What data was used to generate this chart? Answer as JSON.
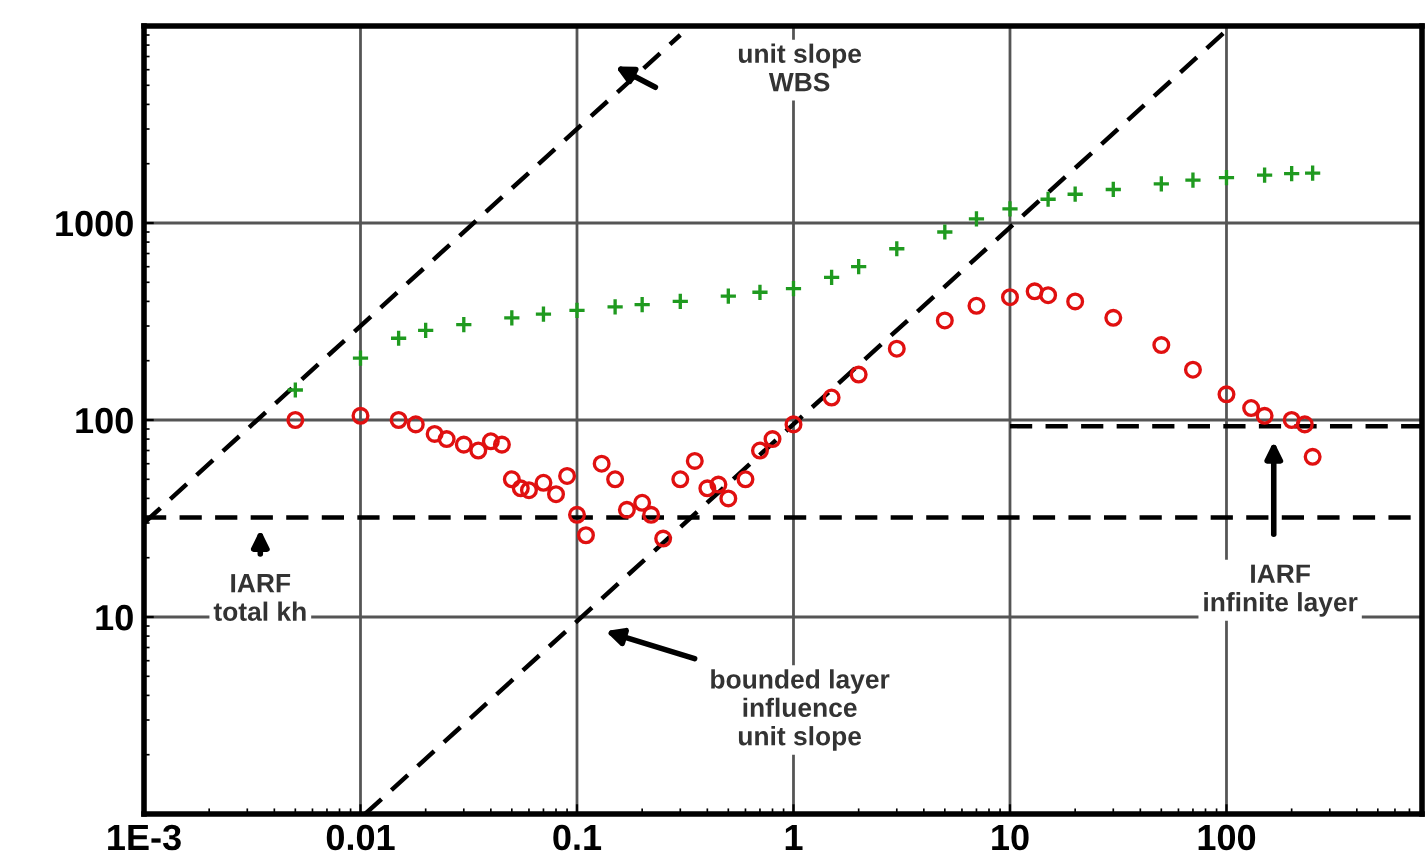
{
  "chart_data": {
    "type": "scatter",
    "log": "xy",
    "grid": true,
    "xlim": [
      0.001,
      800
    ],
    "ylim": [
      1,
      10000
    ],
    "xticks": [
      {
        "value": 0.001,
        "label": "1E-3"
      },
      0.01,
      0.1,
      1,
      10,
      100
    ],
    "yticks": [
      10,
      100,
      1000
    ],
    "series": [
      {
        "marker": "cross",
        "color": "#1f9a1f",
        "x": [
          0.005,
          0.01,
          0.015,
          0.02,
          0.03,
          0.05,
          0.07,
          0.1,
          0.15,
          0.2,
          0.3,
          0.5,
          0.7,
          1,
          1.5,
          2,
          3,
          5,
          7,
          10,
          15,
          20,
          30,
          50,
          70,
          100,
          150,
          200,
          250
        ],
        "values": [
          142,
          206,
          260,
          285,
          305,
          330,
          345,
          360,
          375,
          385,
          400,
          425,
          445,
          464,
          530,
          600,
          740,
          900,
          1050,
          1180,
          1320,
          1400,
          1480,
          1580,
          1650,
          1700,
          1750,
          1780,
          1790
        ]
      },
      {
        "marker": "circle",
        "color": "#e01010",
        "x": [
          0.005,
          0.01,
          0.015,
          0.018,
          0.022,
          0.025,
          0.03,
          0.035,
          0.04,
          0.045,
          0.05,
          0.055,
          0.06,
          0.07,
          0.08,
          0.09,
          0.1,
          0.11,
          0.13,
          0.15,
          0.17,
          0.2,
          0.22,
          0.25,
          0.3,
          0.35,
          0.4,
          0.45,
          0.5,
          0.6,
          0.7,
          0.8,
          1,
          1.5,
          2,
          3,
          5,
          7,
          10,
          13,
          15,
          20,
          30,
          50,
          70,
          100,
          130,
          150,
          200,
          230,
          250
        ],
        "values": [
          100,
          105,
          100,
          95,
          85,
          80,
          75,
          70,
          78,
          75,
          50,
          45,
          44,
          48,
          42,
          52,
          33,
          26,
          60,
          50,
          35,
          38,
          33,
          25,
          50,
          62,
          45,
          47,
          40,
          50,
          70,
          80,
          95,
          130,
          170,
          230,
          320,
          380,
          420,
          450,
          430,
          400,
          330,
          240,
          180,
          135,
          115,
          105,
          100,
          95,
          65
        ]
      },
      {
        "type": "line",
        "line_style": "dashed",
        "marker": "none",
        "color": "#000000",
        "x": [
          0.001,
          0.3
        ],
        "values": [
          30,
          9000
        ]
      },
      {
        "type": "line",
        "line_style": "dashed",
        "marker": "none",
        "color": "#000000",
        "x": [
          0.0105,
          100
        ],
        "values": [
          1,
          9500
        ]
      },
      {
        "type": "line",
        "line_style": "dashed",
        "marker": "none",
        "color": "#000000",
        "x": [
          10,
          800
        ],
        "values": [
          93,
          93
        ]
      }
    ],
    "ref_lines": [
      {
        "axis": "y",
        "value": 32,
        "color": "#000000",
        "line_style": "dashed"
      }
    ],
    "annotations": [
      "unit slope\nWBS",
      "IARF\ntotal kh",
      "bounded layer\ninfluence\nunit slope",
      "IARF\ninfinite layer"
    ]
  }
}
